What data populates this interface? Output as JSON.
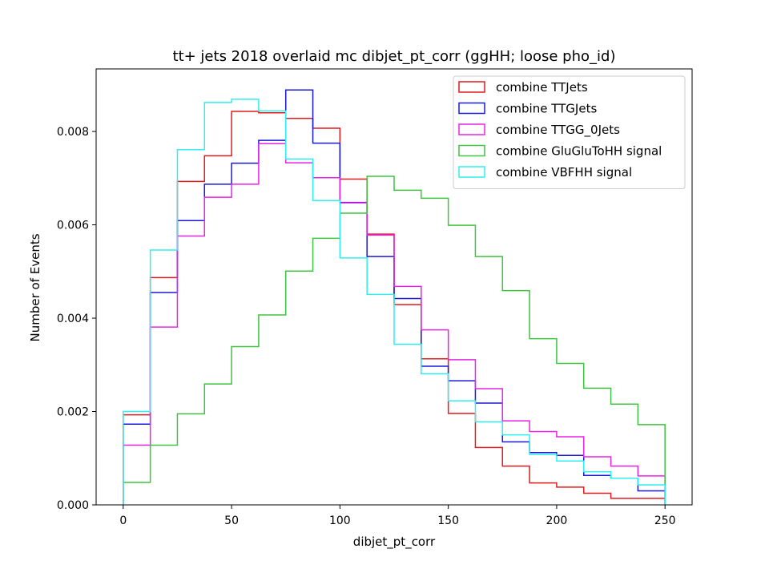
{
  "chart_data": {
    "type": "step-histogram",
    "title": "tt+ jets 2018 overlaid mc dibjet_pt_corr (ggHH; loose pho_id)",
    "xlabel": "dibjet_pt_corr",
    "ylabel": "Number of Events",
    "xlim": [
      -12.5,
      262.5
    ],
    "ylim": [
      0,
      0.00934
    ],
    "xticks": [
      0,
      50,
      100,
      150,
      200,
      250
    ],
    "yticks": [
      0.0,
      0.002,
      0.004,
      0.006,
      0.008
    ],
    "ytick_labels": [
      "0.000",
      "0.002",
      "0.004",
      "0.006",
      "0.008"
    ],
    "bin_edges": [
      0,
      12.5,
      25,
      37.5,
      50,
      62.5,
      75,
      87.5,
      100,
      112.5,
      125,
      137.5,
      150,
      162.5,
      175,
      187.5,
      200,
      212.5,
      225,
      237.5,
      250
    ],
    "legend_position": "upper right",
    "grid": false,
    "series": [
      {
        "name": "combine TTJets",
        "color": "#e41a1c",
        "values": [
          0.00193,
          0.00487,
          0.00693,
          0.00748,
          0.00843,
          0.0084,
          0.00828,
          0.00807,
          0.00698,
          0.0058,
          0.00429,
          0.00313,
          0.00196,
          0.00123,
          0.00083,
          0.00047,
          0.00038,
          0.00025,
          0.00014,
          0.00014
        ]
      },
      {
        "name": "combine TTGJets",
        "color": "#1a1ad6",
        "values": [
          0.00173,
          0.00455,
          0.00609,
          0.00687,
          0.00732,
          0.00781,
          0.00889,
          0.00775,
          0.00648,
          0.00532,
          0.00442,
          0.00297,
          0.00266,
          0.00218,
          0.00135,
          0.00112,
          0.00106,
          0.00063,
          0.00057,
          0.0003
        ]
      },
      {
        "name": "combine TTGG_0Jets",
        "color": "#e824e8",
        "values": [
          0.00128,
          0.00381,
          0.00576,
          0.00659,
          0.00687,
          0.00774,
          0.00733,
          0.00701,
          0.00647,
          0.00578,
          0.00468,
          0.00375,
          0.00311,
          0.00249,
          0.0018,
          0.00157,
          0.00146,
          0.00103,
          0.00083,
          0.00062
        ]
      },
      {
        "name": "combine GluGluToHH signal",
        "color": "#3ec43e",
        "values": [
          0.00048,
          0.00128,
          0.00195,
          0.00259,
          0.00339,
          0.00407,
          0.00501,
          0.00571,
          0.00625,
          0.00704,
          0.00674,
          0.00657,
          0.00599,
          0.00532,
          0.00459,
          0.00356,
          0.00303,
          0.0025,
          0.00216,
          0.00172
        ]
      },
      {
        "name": "combine VBFHH signal",
        "color": "#2ef0f0",
        "values": [
          0.002,
          0.00546,
          0.00761,
          0.00862,
          0.00869,
          0.00844,
          0.00741,
          0.00652,
          0.00529,
          0.00451,
          0.00344,
          0.00281,
          0.00223,
          0.00178,
          0.0015,
          0.00108,
          0.00094,
          0.00071,
          0.00057,
          0.00043
        ]
      }
    ]
  }
}
